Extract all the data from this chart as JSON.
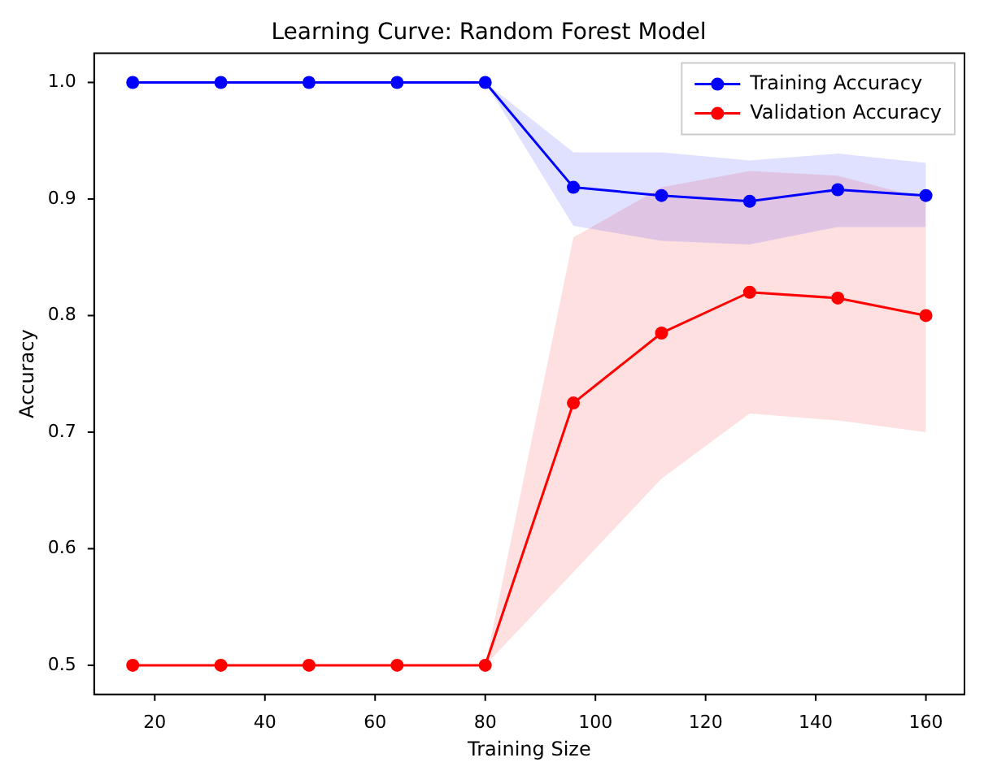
{
  "chart_data": {
    "type": "line",
    "title": "Learning Curve: Random Forest Model",
    "xlabel": "Training Size",
    "ylabel": "Accuracy",
    "x": [
      16,
      32,
      48,
      64,
      80,
      96,
      112,
      128,
      144,
      160
    ],
    "series": [
      {
        "name": "Training Accuracy",
        "color": "#0000ff",
        "values": [
          1.0,
          1.0,
          1.0,
          1.0,
          1.0,
          0.91,
          0.903,
          0.898,
          0.908,
          0.903
        ],
        "lower": [
          1.0,
          1.0,
          1.0,
          1.0,
          1.0,
          0.877,
          0.864,
          0.861,
          0.876,
          0.876
        ],
        "upper": [
          1.0,
          1.0,
          1.0,
          1.0,
          1.0,
          0.94,
          0.94,
          0.933,
          0.939,
          0.931
        ]
      },
      {
        "name": "Validation Accuracy",
        "color": "#ff0000",
        "values": [
          0.5,
          0.5,
          0.5,
          0.5,
          0.5,
          0.725,
          0.785,
          0.82,
          0.815,
          0.8
        ],
        "lower": [
          0.5,
          0.5,
          0.5,
          0.5,
          0.5,
          0.58,
          0.66,
          0.716,
          0.71,
          0.7
        ],
        "upper": [
          0.5,
          0.5,
          0.5,
          0.5,
          0.5,
          0.867,
          0.91,
          0.924,
          0.92,
          0.9
        ]
      }
    ],
    "xlim": [
      9,
      167
    ],
    "xticks": [
      20,
      40,
      60,
      80,
      100,
      120,
      140,
      160
    ],
    "ylim": [
      0.475,
      1.025
    ],
    "yticks": [
      0.5,
      0.6,
      0.7,
      0.8,
      0.9,
      {
        "value": 1,
        "label": "1.0"
      }
    ],
    "grid": false,
    "legend": "top right",
    "marker": "circle",
    "line_style": "solid"
  }
}
